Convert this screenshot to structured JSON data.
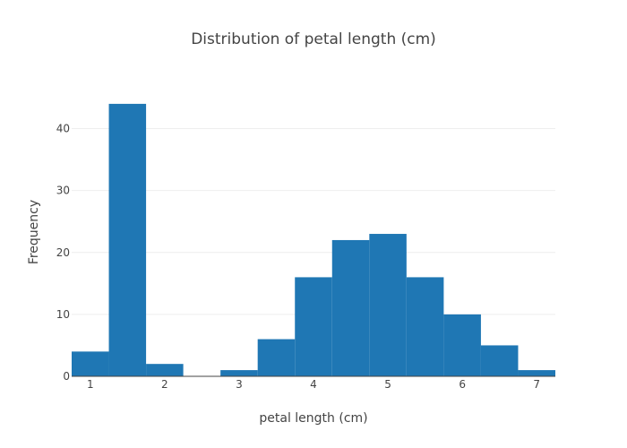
{
  "chart_data": {
    "type": "bar",
    "title": "Distribution of petal length (cm)",
    "xlabel": "petal length (cm)",
    "ylabel": "Frequency",
    "bin_width": 0.5,
    "bins": [
      {
        "start": 0.75,
        "end": 1.25,
        "count": 4
      },
      {
        "start": 1.25,
        "end": 1.75,
        "count": 44
      },
      {
        "start": 1.75,
        "end": 2.25,
        "count": 2
      },
      {
        "start": 2.25,
        "end": 2.75,
        "count": 0
      },
      {
        "start": 2.75,
        "end": 3.25,
        "count": 1
      },
      {
        "start": 3.25,
        "end": 3.75,
        "count": 6
      },
      {
        "start": 3.75,
        "end": 4.25,
        "count": 16
      },
      {
        "start": 4.25,
        "end": 4.75,
        "count": 22
      },
      {
        "start": 4.75,
        "end": 5.25,
        "count": 23
      },
      {
        "start": 5.25,
        "end": 5.75,
        "count": 16
      },
      {
        "start": 5.75,
        "end": 6.25,
        "count": 10
      },
      {
        "start": 6.25,
        "end": 6.75,
        "count": 5
      },
      {
        "start": 6.75,
        "end": 7.25,
        "count": 1
      }
    ],
    "xlim": [
      0.75,
      7.25
    ],
    "ylim": [
      0,
      46.3
    ],
    "xticks": [
      1,
      2,
      3,
      4,
      5,
      6,
      7
    ],
    "yticks": [
      0,
      10,
      20,
      30,
      40
    ],
    "grid": true,
    "bar_color": "#1f77b4"
  }
}
